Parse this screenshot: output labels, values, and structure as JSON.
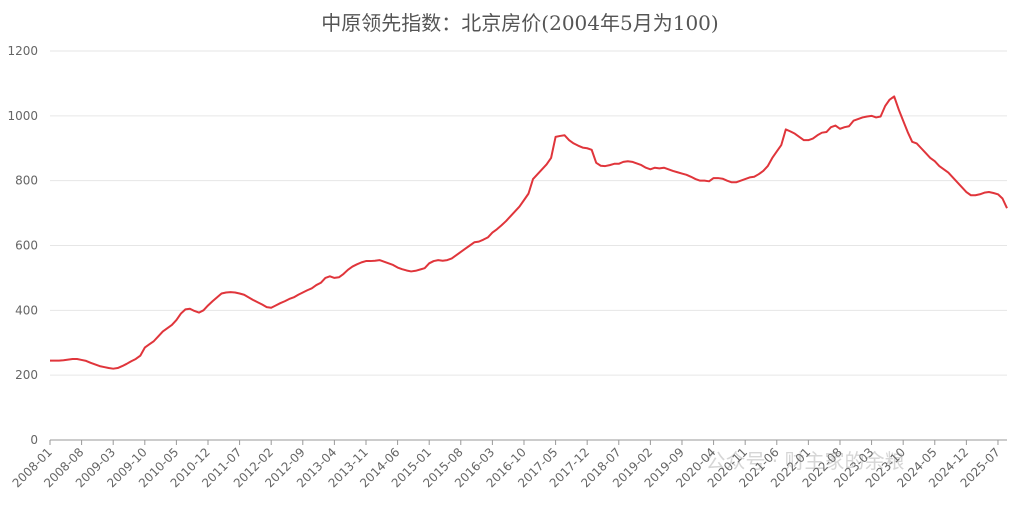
{
  "chart_data": {
    "type": "line",
    "title": "中原领先指数：北京房价(2004年5月为100)",
    "categories": [
      "2008-01",
      null,
      null,
      null,
      null,
      null,
      null,
      "2008-08",
      null,
      null,
      null,
      null,
      null,
      null,
      "2009-03",
      null,
      null,
      null,
      null,
      null,
      null,
      "2009-10",
      null,
      null,
      null,
      null,
      null,
      null,
      "2010-05",
      null,
      null,
      null,
      null,
      null,
      null,
      "2010-12",
      null,
      null,
      null,
      null,
      null,
      null,
      "2011-07",
      null,
      null,
      null,
      null,
      null,
      null,
      "2012-02",
      null,
      null,
      null,
      null,
      null,
      null,
      "2012-09",
      null,
      null,
      null,
      null,
      null,
      null,
      "2013-04",
      null,
      null,
      null,
      null,
      null,
      null,
      "2013-11",
      null,
      null,
      null,
      null,
      null,
      null,
      "2014-06",
      null,
      null,
      null,
      null,
      null,
      null,
      "2015-01",
      null,
      null,
      null,
      null,
      null,
      null,
      "2015-08",
      null,
      null,
      null,
      null,
      null,
      null,
      "2016-03",
      null,
      null,
      null,
      null,
      null,
      null,
      "2016-10",
      null,
      null,
      null,
      null,
      null,
      null,
      "2017-05",
      null,
      null,
      null,
      null,
      null,
      null,
      "2017-12",
      null,
      null,
      null,
      null,
      null,
      null,
      "2018-07",
      null,
      null,
      null,
      null,
      null,
      null,
      "2019-02",
      null,
      null,
      null,
      null,
      null,
      null,
      "2019-09",
      null,
      null,
      null,
      null,
      null,
      null,
      "2020-04",
      null,
      null,
      null,
      null,
      null,
      null,
      "2020-11",
      null,
      null,
      null,
      null,
      null,
      null,
      "2021-06",
      null,
      null,
      null,
      null,
      null,
      null,
      "2022-01",
      null,
      null,
      null,
      null,
      null,
      null,
      "2022-08",
      null,
      null,
      null,
      null,
      null,
      null,
      "2023-03",
      null,
      null,
      null,
      null,
      null,
      null,
      "2023-10",
      null,
      null,
      null,
      null,
      null,
      null,
      "2024-05",
      null,
      null,
      null,
      null,
      null,
      null,
      "2024-12",
      null,
      null,
      null,
      null,
      null,
      null,
      "2025-07",
      null,
      null
    ],
    "values": [
      245,
      245,
      245,
      246,
      248,
      250,
      250,
      247,
      244,
      238,
      233,
      228,
      225,
      222,
      220,
      222,
      228,
      235,
      243,
      250,
      260,
      285,
      295,
      305,
      320,
      335,
      345,
      355,
      370,
      390,
      403,
      405,
      398,
      393,
      400,
      415,
      428,
      440,
      452,
      455,
      456,
      455,
      452,
      448,
      440,
      432,
      425,
      418,
      410,
      408,
      415,
      422,
      428,
      435,
      440,
      448,
      455,
      462,
      468,
      478,
      485,
      500,
      505,
      500,
      502,
      512,
      525,
      535,
      542,
      548,
      552,
      552,
      553,
      555,
      550,
      545,
      540,
      532,
      527,
      523,
      520,
      522,
      526,
      530,
      545,
      552,
      555,
      553,
      555,
      560,
      570,
      580,
      590,
      600,
      610,
      612,
      618,
      625,
      640,
      650,
      662,
      675,
      690,
      705,
      720,
      740,
      760,
      805,
      820,
      835,
      850,
      870,
      935,
      938,
      940,
      925,
      915,
      908,
      902,
      900,
      895,
      855,
      846,
      845,
      848,
      852,
      852,
      858,
      860,
      858,
      853,
      848,
      840,
      835,
      840,
      838,
      840,
      835,
      830,
      826,
      822,
      818,
      812,
      805,
      800,
      800,
      798,
      808,
      808,
      806,
      800,
      795,
      795,
      800,
      805,
      810,
      812,
      820,
      830,
      845,
      870,
      890,
      910,
      958,
      952,
      945,
      935,
      925,
      925,
      930,
      940,
      948,
      950,
      965,
      970,
      960,
      965,
      968,
      985,
      990,
      995,
      998,
      1000,
      995,
      998,
      1030,
      1050,
      1060,
      1020,
      985,
      950,
      920,
      915,
      900,
      885,
      870,
      860,
      845,
      835,
      825,
      810,
      795,
      780,
      765,
      755,
      755,
      758,
      763,
      765,
      762,
      758,
      745,
      715
    ],
    "color": "#e0353b",
    "ylim": [
      0,
      1200
    ],
    "yticks": [
      0,
      200,
      400,
      600,
      800,
      1000,
      1200
    ],
    "grid": true,
    "watermark": "公众号 · 财主家的余粮"
  }
}
